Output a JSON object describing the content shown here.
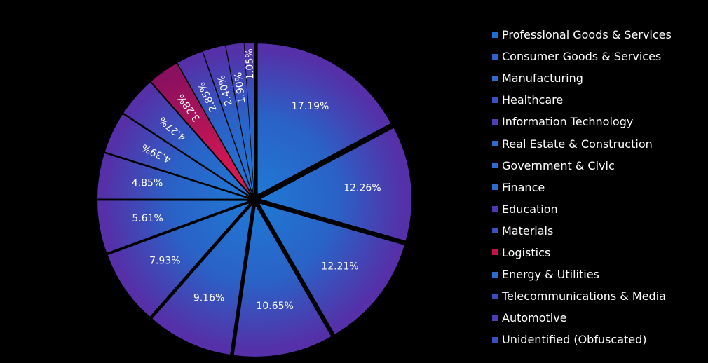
{
  "chart_data": {
    "type": "pie",
    "title": "",
    "categories": [
      "Professional Goods & Services",
      "Consumer Goods & Services",
      "Manufacturing",
      "Healthcare",
      "Information Technology",
      "Real Estate & Construction",
      "Government & Civic",
      "Finance",
      "Education",
      "Materials",
      "Logistics",
      "Energy & Utilities",
      "Telecommunications & Media",
      "Automotive",
      "Unidentified (Obfuscated)"
    ],
    "values": [
      17.19,
      12.26,
      12.21,
      10.65,
      9.16,
      7.93,
      5.61,
      4.85,
      4.39,
      4.27,
      3.28,
      2.85,
      2.4,
      1.9,
      1.05
    ],
    "labels": [
      "17.19%",
      "12.26%",
      "12.21%",
      "10.65%",
      "9.16%",
      "7.93%",
      "5.61%",
      "4.85%",
      "4.39%",
      "4.27%",
      "3.28%",
      "2.85%",
      "2.40%",
      "1.90%",
      "1.05%"
    ],
    "colors": [
      "#1f6fd0",
      "#2a64c8",
      "#2b6bcc",
      "#3a52c0",
      "#4c3fb4",
      "#2a6ccc",
      "#2d6bcc",
      "#2e6ccc",
      "#4a3ab0",
      "#3e4fbe",
      "#c0144a",
      "#2a6ccc",
      "#3b4dbe",
      "#4a3eb4",
      "#3a4fbe"
    ],
    "gradient_inner": "#00b4f0",
    "gradient_outer": "#5a2aa8",
    "highlight_color": "#c0144a",
    "legend_position": "right"
  }
}
